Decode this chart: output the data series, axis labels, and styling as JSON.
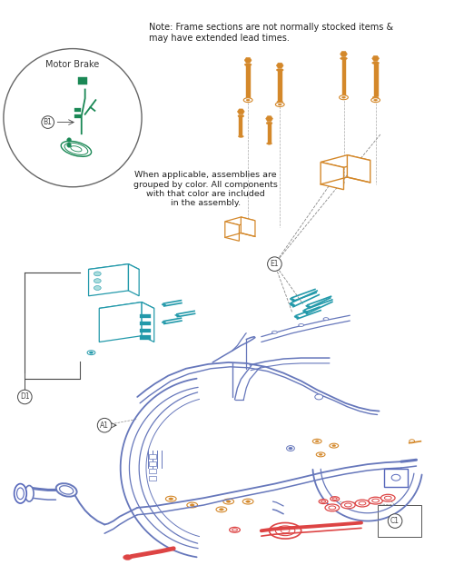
{
  "bg_color": "#ffffff",
  "note_text1": "Note: Frame sections are not normally stocked items &",
  "note_text2": "may have extended lead times.",
  "assembly_text": "When applicable, assemblies are\ngrouped by color. All components\nwith that color are included\nin the assembly.",
  "motor_brake_label": "Motor Brake",
  "label_b1": "B1",
  "label_d1": "D1",
  "label_a1": "A1",
  "label_e1": "E1",
  "label_c1": "C1",
  "color_orange": "#D4882A",
  "color_blue": "#5566BB",
  "color_teal": "#2299AA",
  "color_green": "#1A8855",
  "color_red": "#DD4444",
  "color_frame": "#6677BB",
  "color_gray": "#888888",
  "color_label": "#444444"
}
